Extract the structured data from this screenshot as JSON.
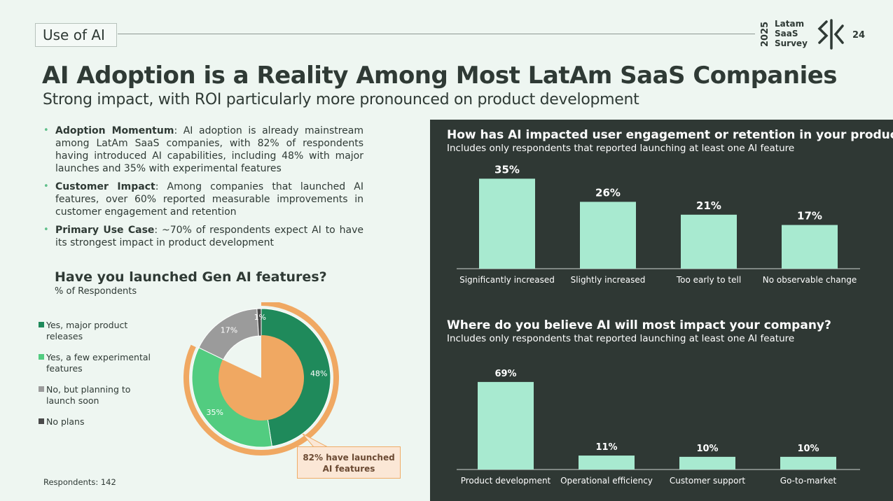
{
  "header": {
    "section_tag": "Use of AI",
    "brand_year": "2025",
    "brand_lines": [
      "Latam",
      "SaaS",
      "Survey"
    ],
    "page_number": "24"
  },
  "title": "AI Adoption is a Reality Among Most LatAm SaaS Companies",
  "subtitle": "Strong impact, with ROI particularly more pronounced on product development",
  "bullets": [
    {
      "label": "Adoption Momentum",
      "text": ": AI adoption is already mainstream among LatAm SaaS companies, with 82% of respondents having introduced AI capabilities, including 48% with major launches and 35% with experimental features"
    },
    {
      "label": "Customer Impact",
      "text": ": Among companies that launched AI features, over 60% reported measurable improvements in customer engagement and retention"
    },
    {
      "label": "Primary Use Case",
      "text": ": ~70% of respondents expect AI to have its strongest impact in product development"
    }
  ],
  "respondents": "Respondents: 142",
  "colors": {
    "accent_mint": "#a8ead0",
    "dark_panel": "#2f3834",
    "orange": "#f0a862",
    "green_dark": "#1f8a5b",
    "green_light": "#52cc80",
    "grey": "#9b9b9b",
    "grey_dark": "#4a4a4a"
  },
  "chart_data": [
    {
      "type": "pie",
      "title": "Have you launched Gen AI features?",
      "subtitle": "% of Respondents",
      "categories": [
        "Yes, major product releases",
        "Yes, a few experimental features",
        "No, but planning to launch soon",
        "No plans"
      ],
      "values": [
        48,
        35,
        17,
        1
      ],
      "labels": [
        "48%",
        "35%",
        "17%",
        "1%"
      ],
      "colors": [
        "#1f8a5b",
        "#52cc80",
        "#9b9b9b",
        "#4a4a4a"
      ],
      "inner_pie": {
        "value": 82,
        "color": "#f0a862"
      },
      "annotation": "82% have launched AI features",
      "legend": "left"
    },
    {
      "type": "bar",
      "title": "How has AI impacted user engagement or retention in your product?",
      "subtitle": "Includes only respondents that reported launching at least one AI feature",
      "categories": [
        "Significantly increased",
        "Slightly increased",
        "Too early to tell",
        "No observable change"
      ],
      "values": [
        35,
        26,
        21,
        17
      ],
      "labels": [
        "35%",
        "26%",
        "21%",
        "17%"
      ],
      "ylim": [
        0,
        40
      ],
      "color": "#a8ead0"
    },
    {
      "type": "bar",
      "title": "Where do you believe AI will most impact your company?",
      "subtitle": "Includes only respondents that reported launching at least one AI feature",
      "categories": [
        "Product development",
        "Operational efficiency",
        "Customer support",
        "Go-to-market"
      ],
      "values": [
        69,
        11,
        10,
        10
      ],
      "labels": [
        "69%",
        "11%",
        "10%",
        "10%"
      ],
      "ylim": [
        0,
        75
      ],
      "color": "#a8ead0"
    }
  ]
}
